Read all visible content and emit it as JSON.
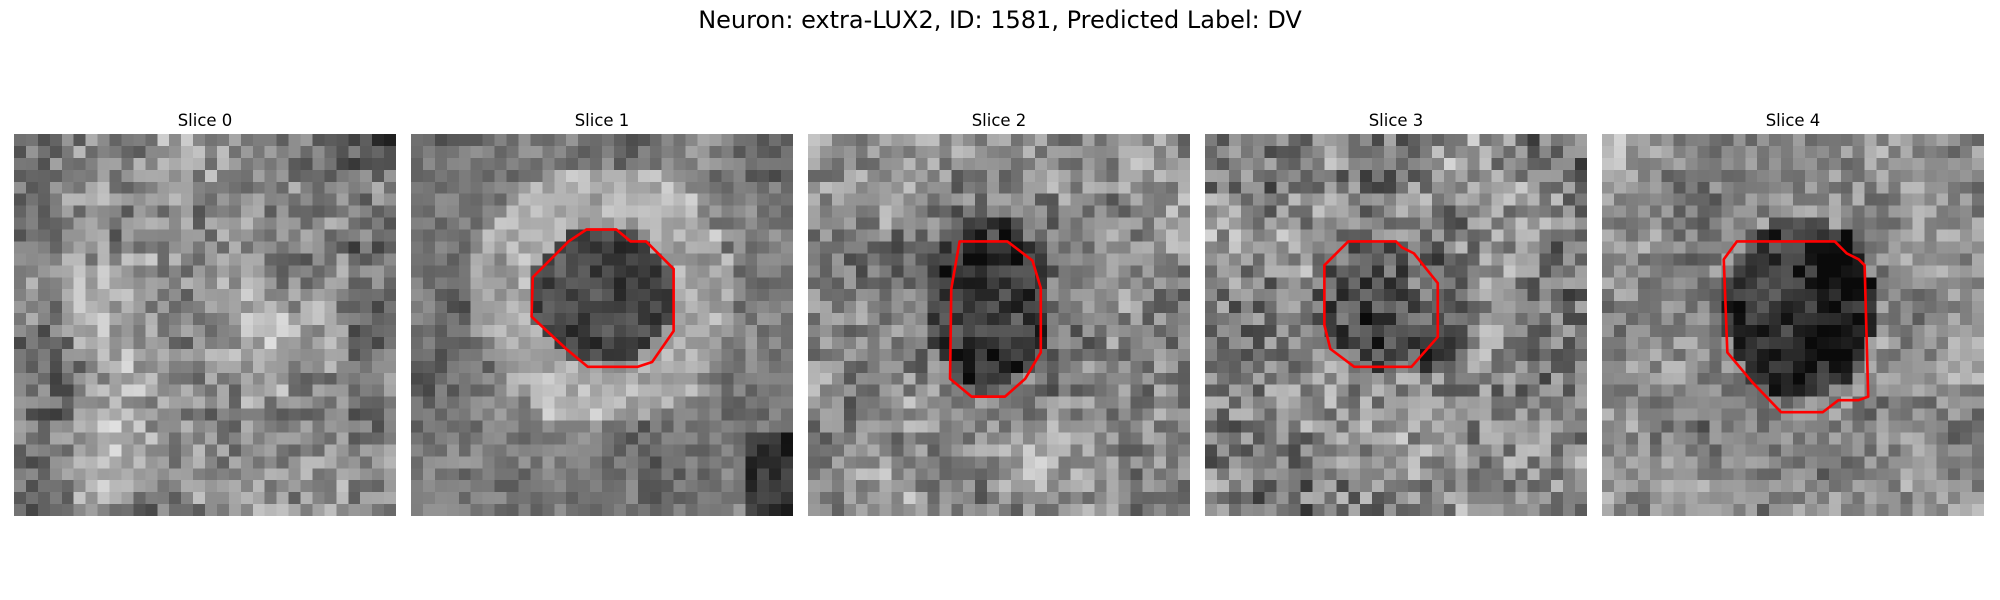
{
  "figure": {
    "title": "Neuron: extra-LUX2, ID: 1581, Predicted Label: DV"
  },
  "colors": {
    "contour": "#ff0000",
    "background": "#ffffff"
  },
  "slices": [
    {
      "label": "Slice 0",
      "has_contour": false
    },
    {
      "label": "Slice 1",
      "has_contour": true
    },
    {
      "label": "Slice 2",
      "has_contour": true
    },
    {
      "label": "Slice 3",
      "has_contour": true
    },
    {
      "label": "Slice 4",
      "has_contour": true
    }
  ]
}
